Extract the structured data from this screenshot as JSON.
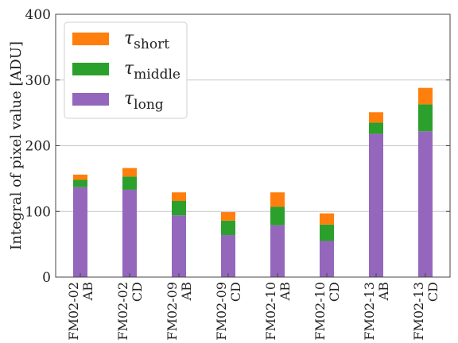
{
  "chart_data": {
    "type": "bar",
    "stacked": true,
    "ylabel": "Integral of pixel value [ADU]",
    "ylim": [
      0,
      400
    ],
    "yticks": [
      0,
      100,
      200,
      300,
      400
    ],
    "grid": "horizontal",
    "legend_position": "top-left",
    "categories": [
      {
        "top": "FM02-02",
        "bottom": "AB"
      },
      {
        "top": "FM02-02",
        "bottom": "CD"
      },
      {
        "top": "FM02-09",
        "bottom": "AB"
      },
      {
        "top": "FM02-09",
        "bottom": "CD"
      },
      {
        "top": "FM02-10",
        "bottom": "AB"
      },
      {
        "top": "FM02-10",
        "bottom": "CD"
      },
      {
        "top": "FM02-13",
        "bottom": "AB"
      },
      {
        "top": "FM02-13",
        "bottom": "CD"
      }
    ],
    "series": [
      {
        "name": "τ",
        "subscript": "long",
        "color": "#9467bd",
        "values": [
          137,
          133,
          94,
          64,
          79,
          55,
          218,
          222
        ]
      },
      {
        "name": "τ",
        "subscript": "middle",
        "color": "#2ca02c",
        "values": [
          11,
          20,
          22,
          22,
          28,
          25,
          17,
          41
        ]
      },
      {
        "name": "τ",
        "subscript": "short",
        "color": "#ff7f0e",
        "values": [
          8,
          13,
          13,
          13,
          22,
          17,
          16,
          25
        ]
      }
    ]
  }
}
